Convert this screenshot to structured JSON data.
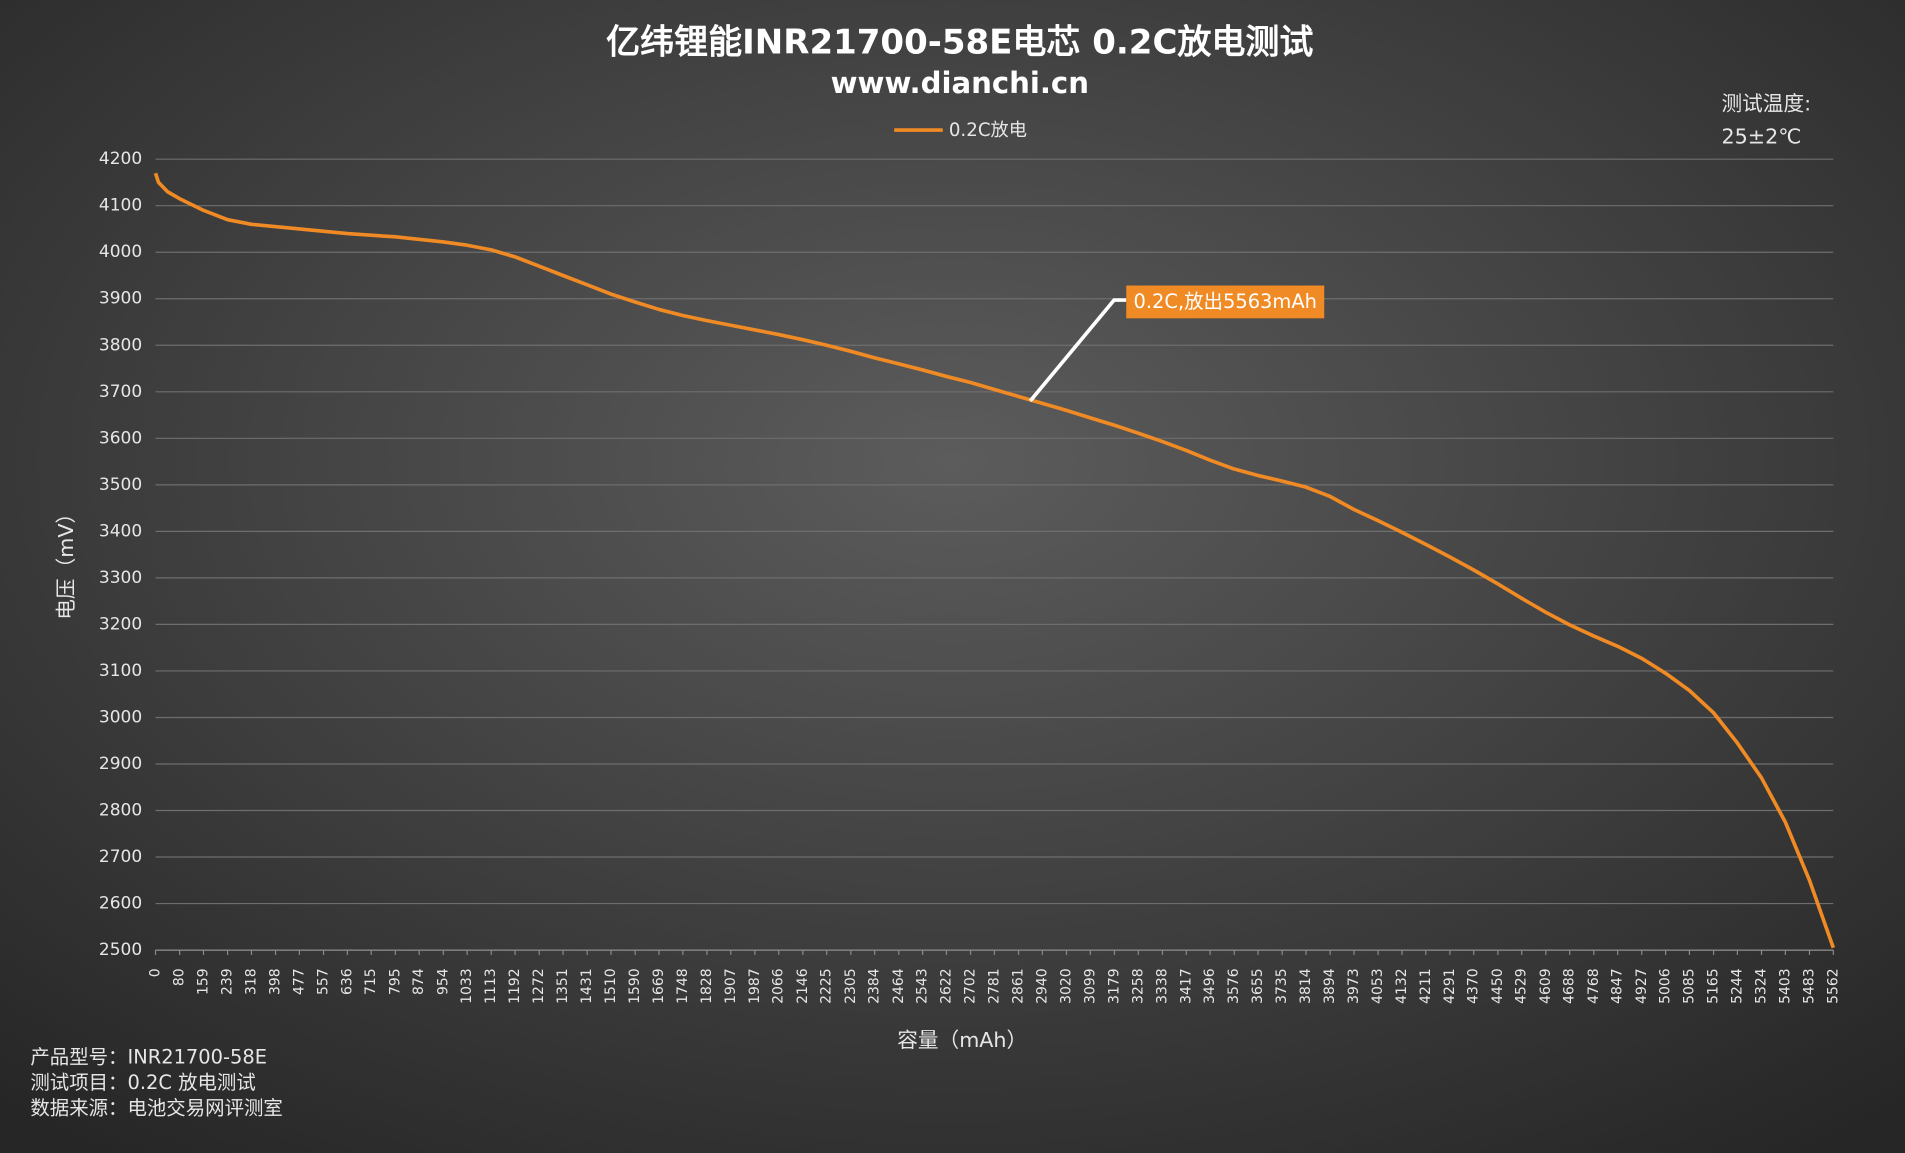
{
  "chart_data": {
    "type": "line",
    "title": "亿纬锂能INR21700-58E电芯 0.2C放电测试",
    "subtitle": "www.dianchi.cn",
    "note_title": "测试温度:",
    "note_value": "25±2℃",
    "y_label": "电压（mV）",
    "x_label": "容量（mAh）",
    "annotation": "0.2C,放出5563mAh",
    "footer": [
      "产品型号：INR21700-58E",
      "测试项目：0.2C 放电测试",
      "数据来源：电池交易网评测室"
    ],
    "legend": "top",
    "grid": true,
    "xlim": [
      0,
      5562
    ],
    "ylim": [
      2500,
      4200
    ],
    "yticks": [
      2500,
      2600,
      2700,
      2800,
      2900,
      3000,
      3100,
      3200,
      3300,
      3400,
      3500,
      3600,
      3700,
      3800,
      3900,
      4000,
      4100,
      4200
    ],
    "xticks": [
      0,
      80,
      159,
      239,
      318,
      398,
      477,
      557,
      636,
      715,
      795,
      874,
      954,
      1033,
      1113,
      1192,
      1272,
      1351,
      1431,
      1510,
      1590,
      1669,
      1748,
      1828,
      1907,
      1987,
      2066,
      2146,
      2225,
      2305,
      2384,
      2464,
      2543,
      2622,
      2702,
      2781,
      2861,
      2940,
      3020,
      3099,
      3179,
      3258,
      3338,
      3417,
      3496,
      3576,
      3655,
      3735,
      3814,
      3894,
      3973,
      4053,
      4132,
      4211,
      4291,
      4370,
      4450,
      4529,
      4609,
      4688,
      4768,
      4847,
      4927,
      5006,
      5085,
      5165,
      5244,
      5324,
      5403,
      5483,
      5562
    ],
    "x": [
      0,
      10,
      40,
      80,
      159,
      239,
      318,
      477,
      636,
      795,
      954,
      1033,
      1113,
      1192,
      1272,
      1351,
      1431,
      1510,
      1590,
      1669,
      1748,
      1828,
      1907,
      1987,
      2066,
      2146,
      2225,
      2305,
      2384,
      2464,
      2543,
      2622,
      2702,
      2781,
      2861,
      2940,
      3020,
      3099,
      3179,
      3258,
      3338,
      3417,
      3496,
      3576,
      3655,
      3735,
      3814,
      3894,
      3973,
      4053,
      4132,
      4211,
      4291,
      4370,
      4450,
      4529,
      4609,
      4688,
      4768,
      4847,
      4927,
      5006,
      5085,
      5165,
      5244,
      5324,
      5403,
      5483,
      5562
    ],
    "series": [
      {
        "name": "0.2C放电",
        "color": "#f08a24",
        "values": [
          4170,
          4150,
          4130,
          4115,
          4090,
          4070,
          4060,
          4050,
          4040,
          4033,
          4022,
          4015,
          4005,
          3990,
          3970,
          3950,
          3930,
          3910,
          3893,
          3877,
          3864,
          3853,
          3843,
          3833,
          3823,
          3812,
          3800,
          3787,
          3773,
          3760,
          3747,
          3733,
          3720,
          3705,
          3690,
          3675,
          3660,
          3644,
          3628,
          3611,
          3593,
          3574,
          3553,
          3534,
          3520,
          3508,
          3495,
          3475,
          3447,
          3423,
          3398,
          3372,
          3345,
          3317,
          3287,
          3256,
          3226,
          3199,
          3175,
          3153,
          3127,
          3095,
          3058,
          3010,
          2945,
          2870,
          2775,
          2650,
          2505
        ]
      }
    ]
  }
}
